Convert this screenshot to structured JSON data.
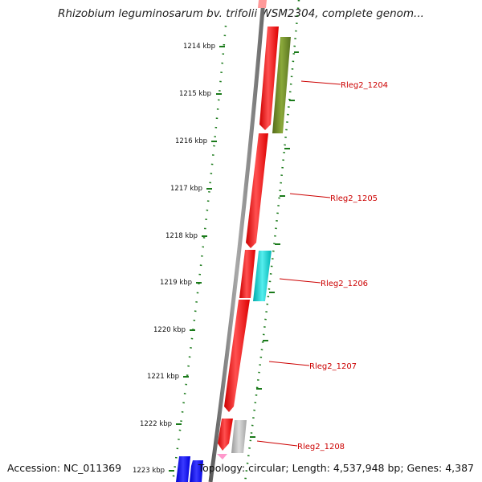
{
  "title": "Rhizobium leguminosarum bv. trifolii WSM2304, complete genom...",
  "footer": {
    "accession": "Accession: NC_011369",
    "stats": "Topology: circular; Length: 4,537,948 bp; Genes: 4,387"
  },
  "scale": {
    "ticks": [
      "1214 kbp",
      "1215 kbp",
      "1216 kbp",
      "1217 kbp",
      "1218 kbp",
      "1219 kbp",
      "1220 kbp",
      "1221 kbp",
      "1222 kbp",
      "1223 kbp"
    ]
  },
  "genes": [
    {
      "label": "Rleg2_1204",
      "color": "#6b8e23"
    },
    {
      "label": "Rleg2_1205",
      "color": "#ff0000"
    },
    {
      "label": "Rleg2_1206",
      "color": "#00cccc"
    },
    {
      "label": "Rleg2_1207",
      "color": "#ff0000"
    },
    {
      "label": "Rleg2_1208",
      "color": "#b0b0b0"
    }
  ],
  "colors": {
    "backbone": "#7a7a7a",
    "forward": "#ff0000",
    "reverse": "#6b8e23",
    "ticks": "#1a7a1a",
    "blue": "#0000ee",
    "pink": "#ff99cc"
  }
}
